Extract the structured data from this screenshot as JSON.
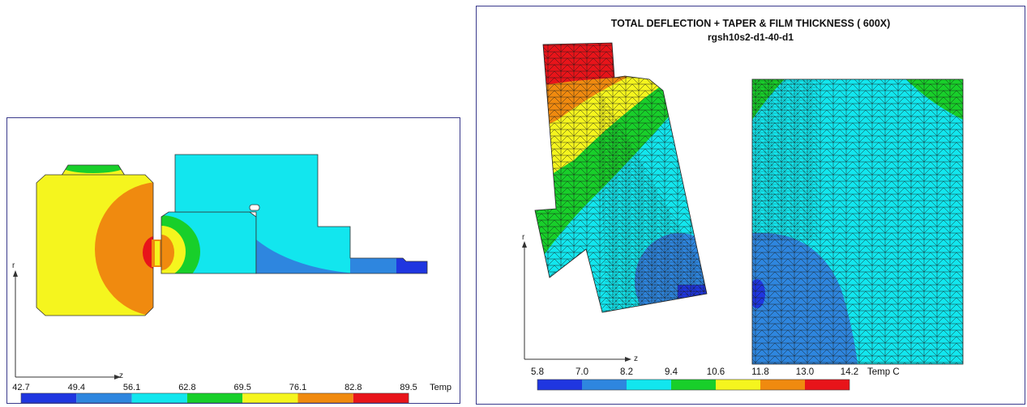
{
  "left_panel": {
    "axis_r": "r",
    "axis_z": "z",
    "legend": {
      "ticks": [
        "42.7",
        "49.4",
        "56.1",
        "62.8",
        "69.5",
        "76.1",
        "82.8",
        "89.5"
      ],
      "unit": "Temp",
      "colors": [
        "#1f36e0",
        "#2e86df",
        "#12e6ee",
        "#18cf2a",
        "#f5f51e",
        "#f08a0f",
        "#e8141a"
      ]
    }
  },
  "right_panel": {
    "title": "TOTAL DEFLECTION + TAPER & FILM THICKNESS ( 600X)",
    "subtitle": "rgsh10s2-d1-40-d1",
    "axis_r": "r",
    "axis_z": "z",
    "legend": {
      "ticks": [
        "5.8",
        "7.0",
        "8.2",
        "9.4",
        "10.6",
        "11.8",
        "13.0",
        "14.2"
      ],
      "unit": "Temp C",
      "colors": [
        "#1f36e0",
        "#2e86df",
        "#12e6ee",
        "#18cf2a",
        "#f5f51e",
        "#f08a0f",
        "#e8141a"
      ]
    }
  }
}
